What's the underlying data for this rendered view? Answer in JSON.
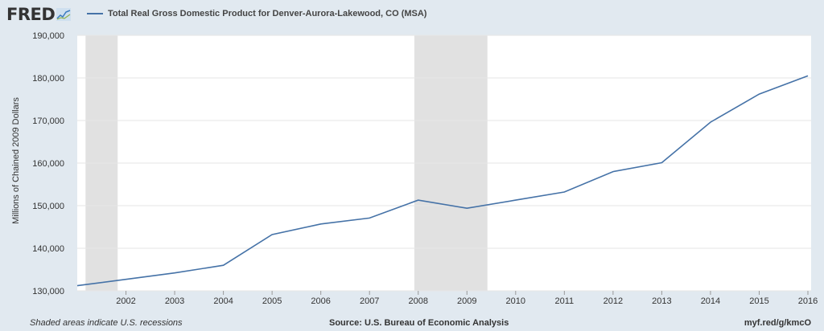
{
  "header": {
    "logo_text": "FRED",
    "logo_icon": "line-graph-icon"
  },
  "chart_data": {
    "type": "line",
    "title": "",
    "series": [
      {
        "name": "Total Real Gross Domestic Product for Denver-Aurora-Lakewood, CO (MSA)",
        "x": [
          2001,
          2002,
          2003,
          2004,
          2005,
          2006,
          2007,
          2008,
          2009,
          2010,
          2011,
          2012,
          2013,
          2014,
          2015,
          2016
        ],
        "values": [
          131200,
          132700,
          134200,
          136000,
          143200,
          145700,
          147100,
          151300,
          149400,
          151300,
          153200,
          158000,
          160100,
          169600,
          176200,
          180500
        ]
      }
    ],
    "xlabel": "",
    "ylabel": "Millions of Chained 2009 Dollars",
    "ylim": [
      130000,
      190000
    ],
    "xlim": [
      2001,
      2016
    ],
    "yticks": [
      "130,000",
      "140,000",
      "150,000",
      "160,000",
      "170,000",
      "180,000",
      "190,000"
    ],
    "xticks": [
      "2002",
      "2003",
      "2004",
      "2005",
      "2006",
      "2007",
      "2008",
      "2009",
      "2010",
      "2011",
      "2012",
      "2013",
      "2014",
      "2015",
      "2016"
    ],
    "recessions": [
      [
        2001.17,
        2001.83
      ],
      [
        2007.92,
        2009.42
      ]
    ],
    "line_color": "#4572a7",
    "recession_color": "#e1e1e1",
    "grid": true
  },
  "footer": {
    "note": "Shaded areas indicate U.S. recessions",
    "source": "Source: U.S. Bureau of Economic Analysis",
    "link": "myf.red/g/kmcO"
  }
}
